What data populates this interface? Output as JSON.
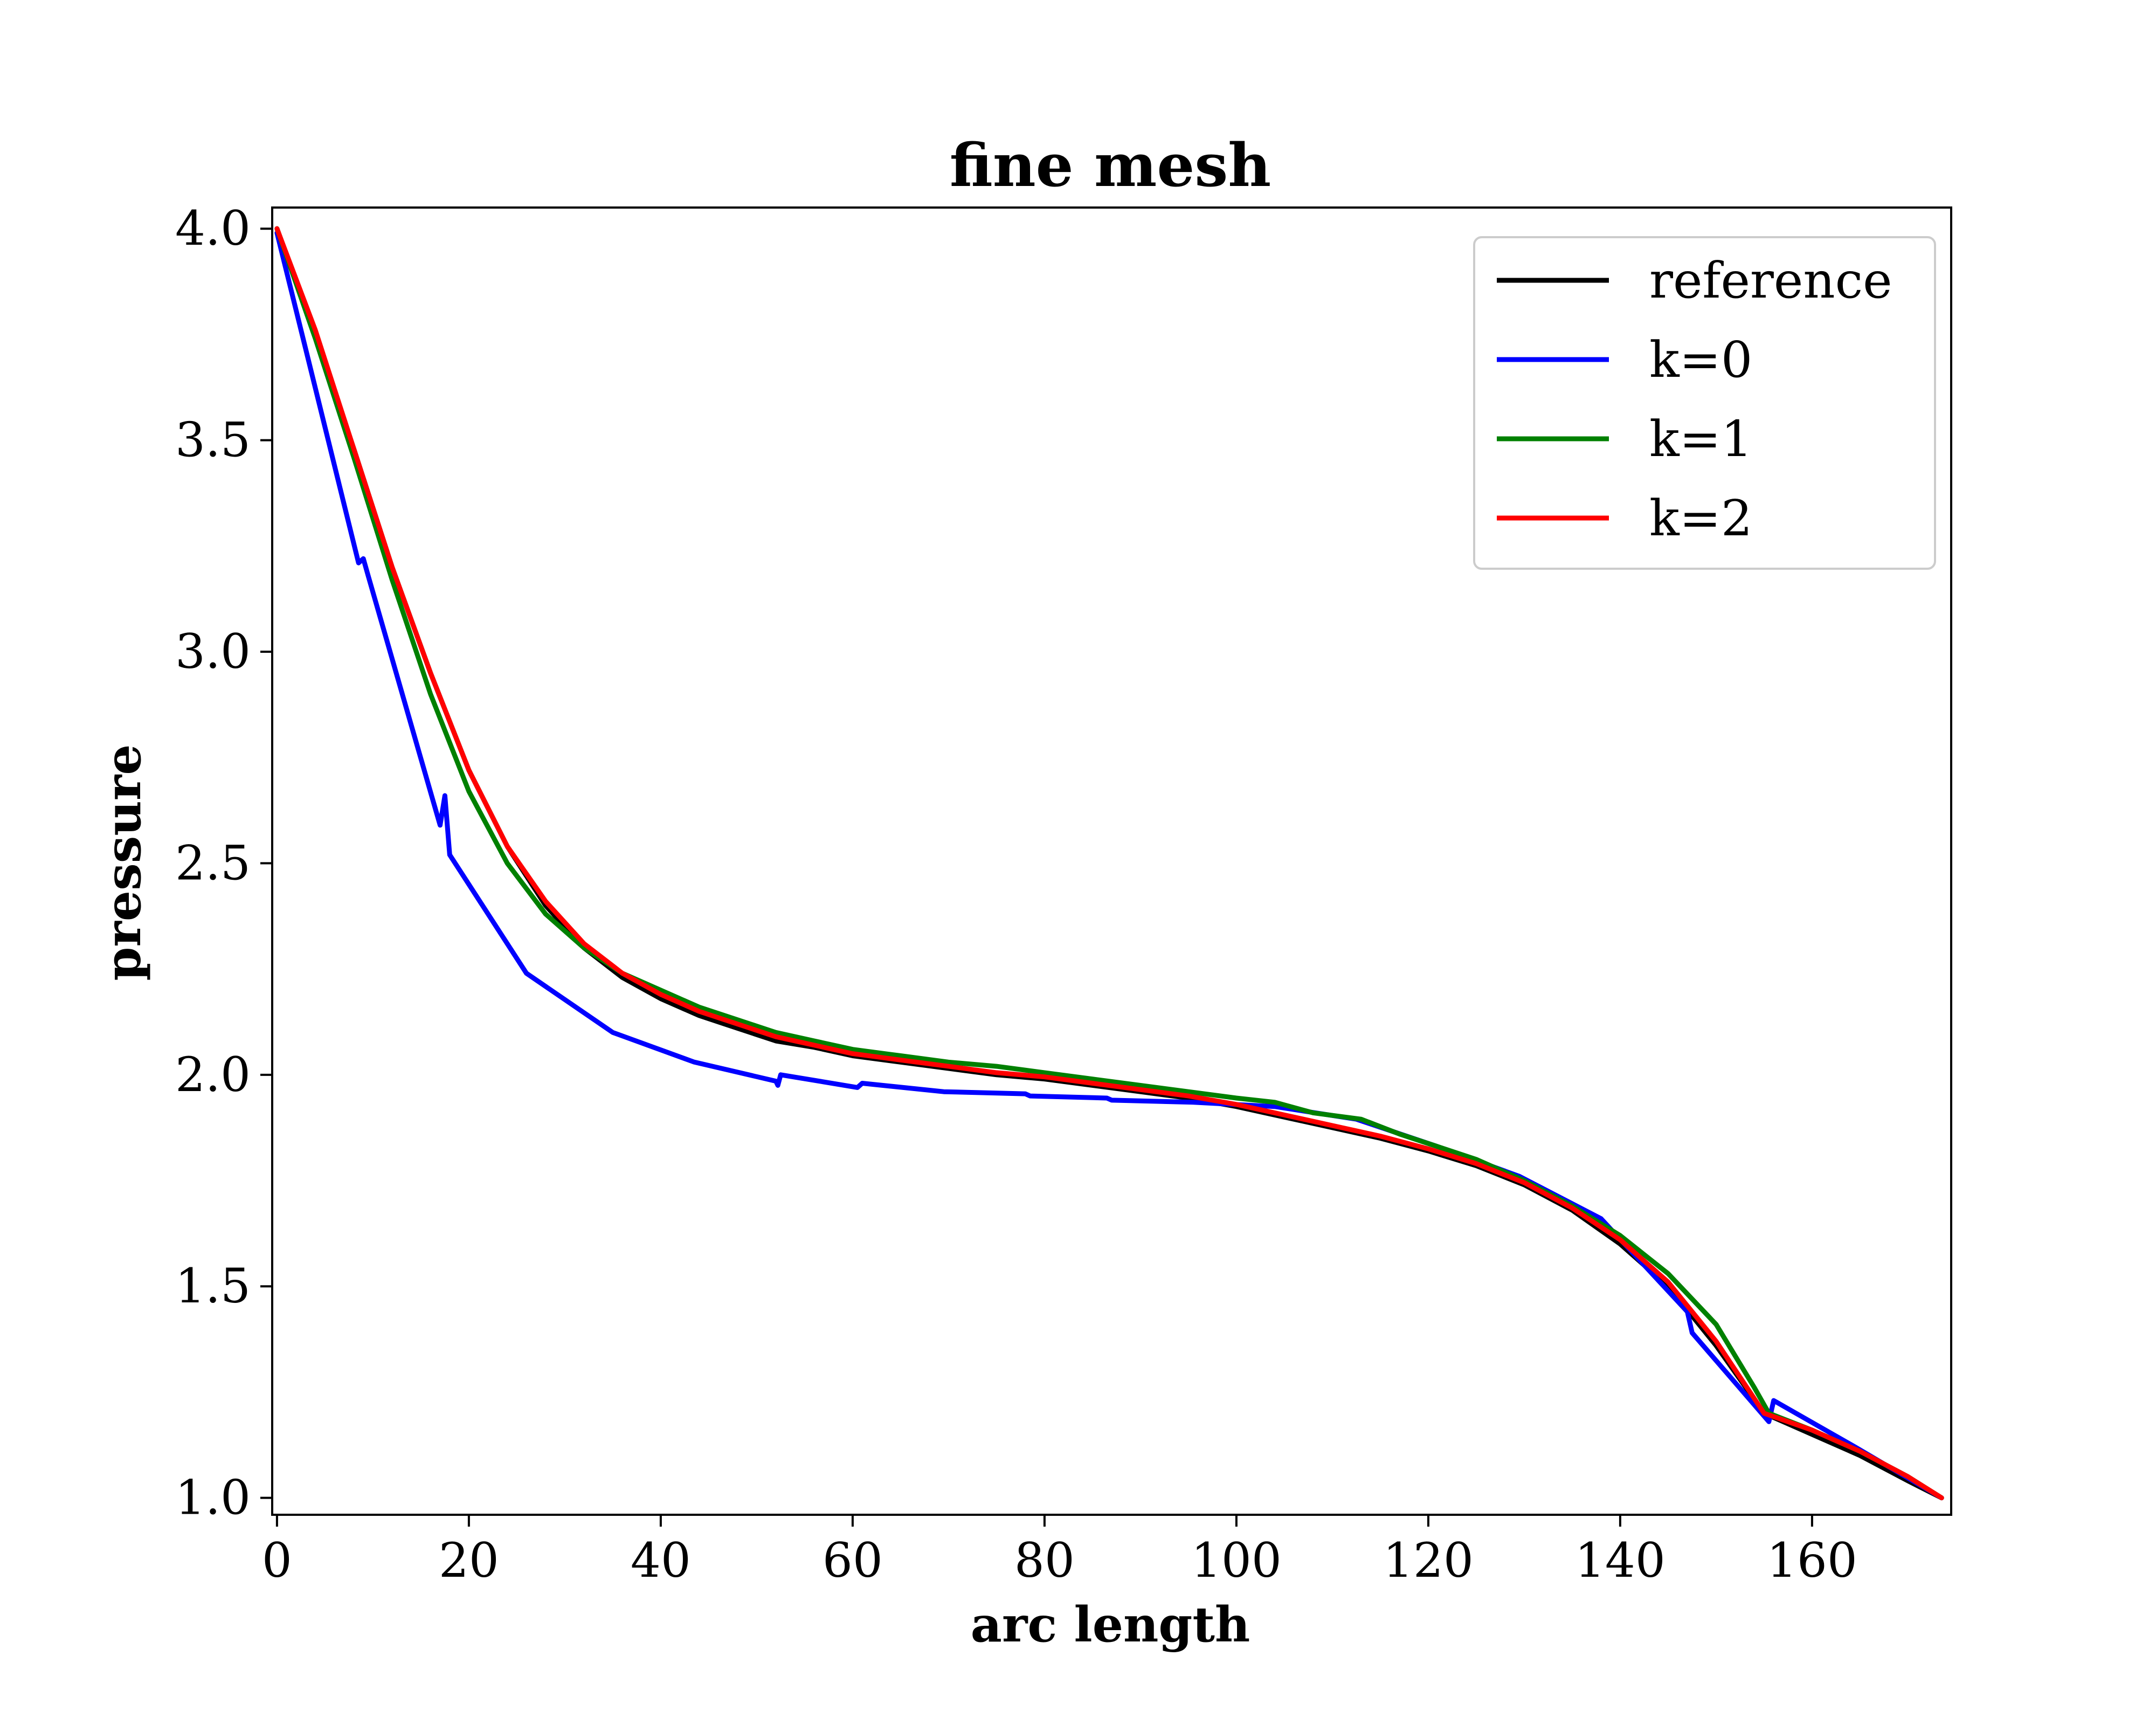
{
  "chart_data": {
    "type": "line",
    "title": "fine mesh",
    "xlabel": "arc length",
    "ylabel": "pressure",
    "xlim": [
      -0.5,
      174.5
    ],
    "ylim": [
      0.96,
      4.05
    ],
    "xticks": [
      0,
      20,
      40,
      60,
      80,
      100,
      120,
      140,
      160
    ],
    "yticks": [
      1.0,
      1.5,
      2.0,
      2.5,
      3.0,
      3.5,
      4.0
    ],
    "ytick_labels": [
      "1.0",
      "1.5",
      "2.0",
      "2.5",
      "3.0",
      "3.5",
      "4.0"
    ],
    "grid": false,
    "legend_position": "top-right",
    "series": [
      {
        "name": "reference",
        "color": "#000000",
        "x": [
          0,
          4,
          8,
          12,
          16,
          20,
          24,
          28,
          32,
          36,
          40,
          44,
          48,
          52,
          56,
          60,
          65,
          70,
          75,
          80,
          85,
          90,
          95,
          100,
          105,
          110,
          115,
          120,
          125,
          130,
          135,
          140,
          145,
          150,
          155,
          160,
          165,
          170,
          173.5
        ],
        "y": [
          4.0,
          3.75,
          3.48,
          3.2,
          2.95,
          2.72,
          2.54,
          2.4,
          2.3,
          2.23,
          2.18,
          2.14,
          2.11,
          2.08,
          2.065,
          2.045,
          2.03,
          2.015,
          2.0,
          1.99,
          1.975,
          1.96,
          1.945,
          1.925,
          1.9,
          1.875,
          1.85,
          1.82,
          1.785,
          1.74,
          1.68,
          1.6,
          1.5,
          1.36,
          1.2,
          1.15,
          1.1,
          1.04,
          1.0
        ]
      },
      {
        "name": "k=0",
        "color": "#0000ff",
        "x": [
          0,
          8.5,
          9,
          9.5,
          17,
          17.5,
          18,
          26,
          35,
          43.5,
          52,
          52.2,
          52.5,
          60.5,
          61,
          69.5,
          78,
          78.5,
          86.5,
          87,
          95.5,
          104,
          112.5,
          121,
          129.5,
          138,
          147,
          147.5,
          155.5,
          156,
          164.5,
          173.5
        ],
        "y": [
          3.99,
          3.21,
          3.22,
          3.18,
          2.59,
          2.66,
          2.52,
          2.24,
          2.1,
          2.03,
          1.985,
          1.975,
          2.0,
          1.97,
          1.98,
          1.96,
          1.955,
          1.95,
          1.945,
          1.94,
          1.935,
          1.925,
          1.895,
          1.83,
          1.76,
          1.66,
          1.44,
          1.39,
          1.18,
          1.23,
          1.12,
          1.0
        ]
      },
      {
        "name": "k=1",
        "color": "#008000",
        "x": [
          0,
          4,
          8,
          12,
          16,
          20,
          24,
          28,
          32,
          36,
          40,
          44,
          48,
          52,
          56,
          60,
          65,
          70,
          75,
          80,
          85,
          90,
          95,
          100,
          104,
          108,
          113,
          117,
          121,
          125,
          130,
          135,
          140,
          145,
          150,
          154,
          155.5,
          160,
          165,
          170,
          173.5
        ],
        "y": [
          4.0,
          3.74,
          3.46,
          3.17,
          2.9,
          2.67,
          2.5,
          2.38,
          2.3,
          2.24,
          2.2,
          2.16,
          2.13,
          2.1,
          2.08,
          2.06,
          2.045,
          2.03,
          2.02,
          2.005,
          1.99,
          1.975,
          1.96,
          1.945,
          1.935,
          1.91,
          1.895,
          1.86,
          1.83,
          1.8,
          1.75,
          1.69,
          1.62,
          1.53,
          1.41,
          1.26,
          1.2,
          1.16,
          1.11,
          1.05,
          1.0
        ]
      },
      {
        "name": "k=2",
        "color": "#ff0000",
        "x": [
          0,
          4,
          8,
          12,
          16,
          20,
          24,
          28,
          32,
          36,
          40,
          44,
          48,
          52,
          56,
          60,
          65,
          70,
          75,
          80,
          85,
          90,
          95,
          100,
          105,
          110,
          115,
          120,
          125,
          130,
          135,
          140,
          145,
          150,
          155,
          160,
          165,
          170,
          173.5
        ],
        "y": [
          4.0,
          3.76,
          3.48,
          3.2,
          2.95,
          2.72,
          2.54,
          2.41,
          2.31,
          2.24,
          2.19,
          2.15,
          2.12,
          2.09,
          2.07,
          2.05,
          2.035,
          2.02,
          2.005,
          1.995,
          1.98,
          1.965,
          1.95,
          1.93,
          1.905,
          1.88,
          1.855,
          1.825,
          1.79,
          1.745,
          1.685,
          1.61,
          1.51,
          1.37,
          1.2,
          1.16,
          1.11,
          1.05,
          1.0
        ]
      }
    ]
  }
}
